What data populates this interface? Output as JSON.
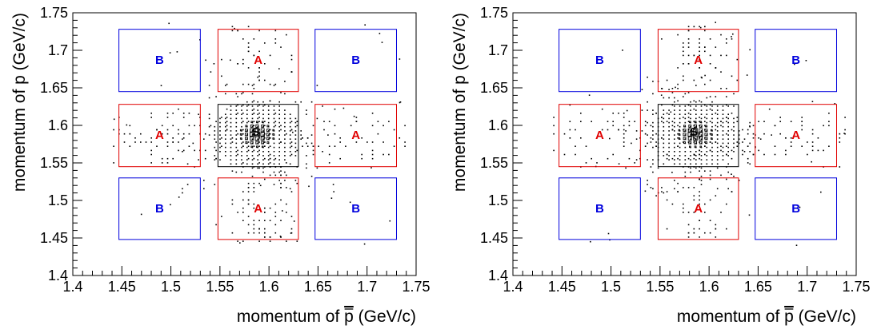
{
  "chart_data": [
    {
      "type": "scatter",
      "title": "",
      "xlabel_main": "momentum of ",
      "xlabel_sym": "p",
      "xlabel_unit": " (GeV/c)",
      "ylabel": "momentum of p (GeV/c)",
      "xlim": [
        1.4,
        1.75
      ],
      "ylim": [
        1.4,
        1.75
      ],
      "x_ticks": [
        "1.4",
        "1.45",
        "1.5",
        "1.55",
        "1.6",
        "1.65",
        "1.7",
        "1.75"
      ],
      "y_ticks": [
        "1.4",
        "1.45",
        "1.5",
        "1.55",
        "1.6",
        "1.65",
        "1.7",
        "1.75"
      ],
      "grid": false,
      "regions": [
        {
          "label": "S",
          "x": [
            1.548,
            1.63
          ],
          "y": [
            1.545,
            1.628
          ],
          "color": "#000000"
        },
        {
          "label": "A",
          "x": [
            1.548,
            1.63
          ],
          "y": [
            1.645,
            1.728
          ],
          "color": "#e00000"
        },
        {
          "label": "A",
          "x": [
            1.548,
            1.63
          ],
          "y": [
            1.448,
            1.53
          ],
          "color": "#e00000"
        },
        {
          "label": "A",
          "x": [
            1.447,
            1.53
          ],
          "y": [
            1.545,
            1.628
          ],
          "color": "#e00000"
        },
        {
          "label": "A",
          "x": [
            1.647,
            1.73
          ],
          "y": [
            1.545,
            1.628
          ],
          "color": "#e00000"
        },
        {
          "label": "B",
          "x": [
            1.447,
            1.53
          ],
          "y": [
            1.645,
            1.728
          ],
          "color": "#0000dd"
        },
        {
          "label": "B",
          "x": [
            1.647,
            1.73
          ],
          "y": [
            1.645,
            1.728
          ],
          "color": "#0000dd"
        },
        {
          "label": "B",
          "x": [
            1.447,
            1.53
          ],
          "y": [
            1.448,
            1.53
          ],
          "color": "#0000dd"
        },
        {
          "label": "B",
          "x": [
            1.647,
            1.73
          ],
          "y": [
            1.448,
            1.53
          ],
          "color": "#0000dd"
        }
      ],
      "peak": {
        "x": 1.588,
        "y": 1.588
      }
    },
    {
      "type": "scatter",
      "title": "",
      "xlabel_main": "momentum of ",
      "xlabel_sym": "p",
      "xlabel_unit": " (GeV/c)",
      "ylabel": "momentum of p (GeV/c)",
      "xlim": [
        1.4,
        1.75
      ],
      "ylim": [
        1.4,
        1.75
      ],
      "x_ticks": [
        "1.4",
        "1.45",
        "1.5",
        "1.55",
        "1.6",
        "1.65",
        "1.7",
        "1.75"
      ],
      "y_ticks": [
        "1.4",
        "1.45",
        "1.5",
        "1.55",
        "1.6",
        "1.65",
        "1.7",
        "1.75"
      ],
      "grid": false,
      "regions": [
        {
          "label": "S",
          "x": [
            1.548,
            1.63
          ],
          "y": [
            1.545,
            1.628
          ],
          "color": "#000000"
        },
        {
          "label": "A",
          "x": [
            1.548,
            1.63
          ],
          "y": [
            1.645,
            1.728
          ],
          "color": "#e00000"
        },
        {
          "label": "A",
          "x": [
            1.548,
            1.63
          ],
          "y": [
            1.448,
            1.53
          ],
          "color": "#e00000"
        },
        {
          "label": "A",
          "x": [
            1.447,
            1.53
          ],
          "y": [
            1.545,
            1.628
          ],
          "color": "#e00000"
        },
        {
          "label": "A",
          "x": [
            1.647,
            1.73
          ],
          "y": [
            1.545,
            1.628
          ],
          "color": "#e00000"
        },
        {
          "label": "B",
          "x": [
            1.447,
            1.53
          ],
          "y": [
            1.645,
            1.728
          ],
          "color": "#0000dd"
        },
        {
          "label": "B",
          "x": [
            1.647,
            1.73
          ],
          "y": [
            1.645,
            1.728
          ],
          "color": "#0000dd"
        },
        {
          "label": "B",
          "x": [
            1.447,
            1.53
          ],
          "y": [
            1.448,
            1.53
          ],
          "color": "#0000dd"
        },
        {
          "label": "B",
          "x": [
            1.647,
            1.73
          ],
          "y": [
            1.448,
            1.53
          ],
          "color": "#0000dd"
        }
      ],
      "peak": {
        "x": 1.586,
        "y": 1.588
      }
    }
  ]
}
